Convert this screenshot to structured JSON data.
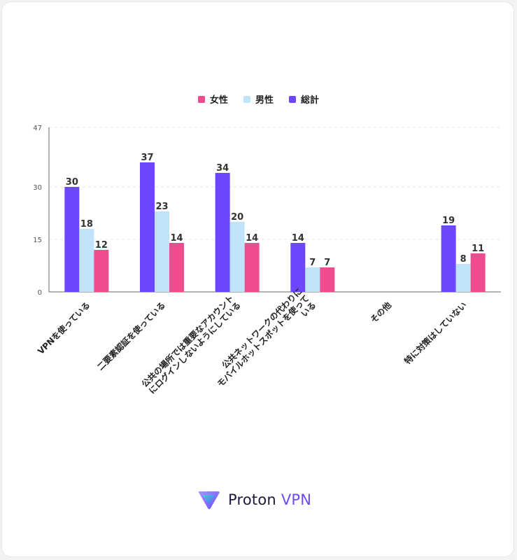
{
  "chart_data": {
    "type": "bar",
    "categories": [
      "VPNを使っている",
      "二要素認証を使っている",
      "公共の場所では重要なアカウント\nにログインしないようにしている",
      "公共ネットワークの代わりに\nモバイルホットスポットを使って\nいる",
      "その他",
      "特に対策はしていない"
    ],
    "series": [
      {
        "name": "総計",
        "color": "#6c47ff",
        "values": [
          30,
          37,
          34,
          14,
          null,
          19
        ]
      },
      {
        "name": "男性",
        "color": "#bfe3fb",
        "values": [
          18,
          23,
          20,
          7,
          null,
          8
        ]
      },
      {
        "name": "女性",
        "color": "#ee4c8f",
        "values": [
          12,
          14,
          14,
          7,
          null,
          11
        ]
      }
    ],
    "legend_order": [
      "女性",
      "男性",
      "総計"
    ],
    "yticks": [
      0,
      15,
      30,
      47
    ],
    "ylim": [
      0,
      47
    ],
    "grid": true,
    "legend_position": "top-center"
  },
  "brand": {
    "name": "Proton",
    "product": "VPN"
  }
}
